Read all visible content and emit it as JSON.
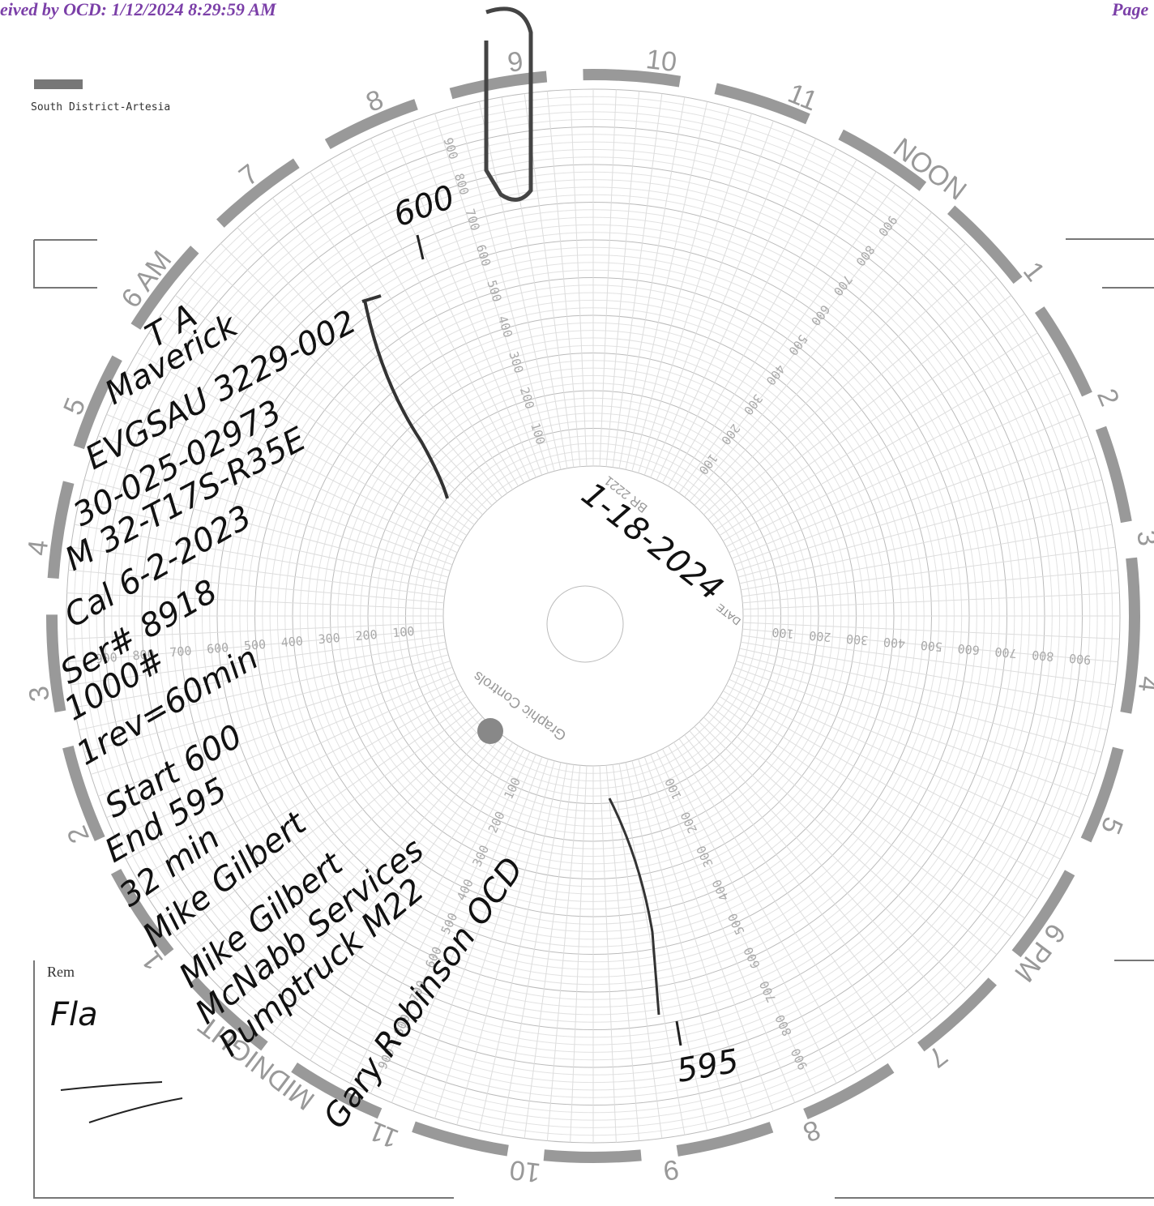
{
  "header": {
    "received": "eived by OCD: 1/12/2024 8:29:59 AM",
    "page": "Page"
  },
  "district": "South District-Artesia",
  "chart_disc": {
    "hours": [
      "MIDNIGHT",
      "1",
      "2",
      "3",
      "4",
      "5",
      "6 AM",
      "7",
      "8",
      "9",
      "10",
      "11",
      "NOON",
      "1",
      "2",
      "3",
      "4",
      "5",
      "6 PM",
      "7",
      "8",
      "9",
      "10",
      "11"
    ],
    "ring_labels": [
      "100",
      "200",
      "300",
      "400",
      "500",
      "600",
      "700",
      "800",
      "900"
    ],
    "date_label": "DATE",
    "catalog": "BR 2221",
    "maker": "Graphic Controls",
    "date": "1-18-2024"
  },
  "trace_marks": {
    "start": "600",
    "end": "595"
  },
  "notes": [
    "T A",
    "Maverick",
    "EVGSAU 3229-002",
    "30-025-02973",
    "M 32-T17S-R35E",
    "Cal 6-2-2023",
    "Ser# 8918",
    "1000#",
    "1rev=60min",
    "Start 600",
    "End 595",
    "32 min",
    "Mike Gilbert",
    "Mike Gilbert",
    "McNabb Services",
    "Pumptruck M22"
  ],
  "witness": "Gary Robinson OCD",
  "corner": {
    "rem": "Rem",
    "fla": "Fla"
  }
}
